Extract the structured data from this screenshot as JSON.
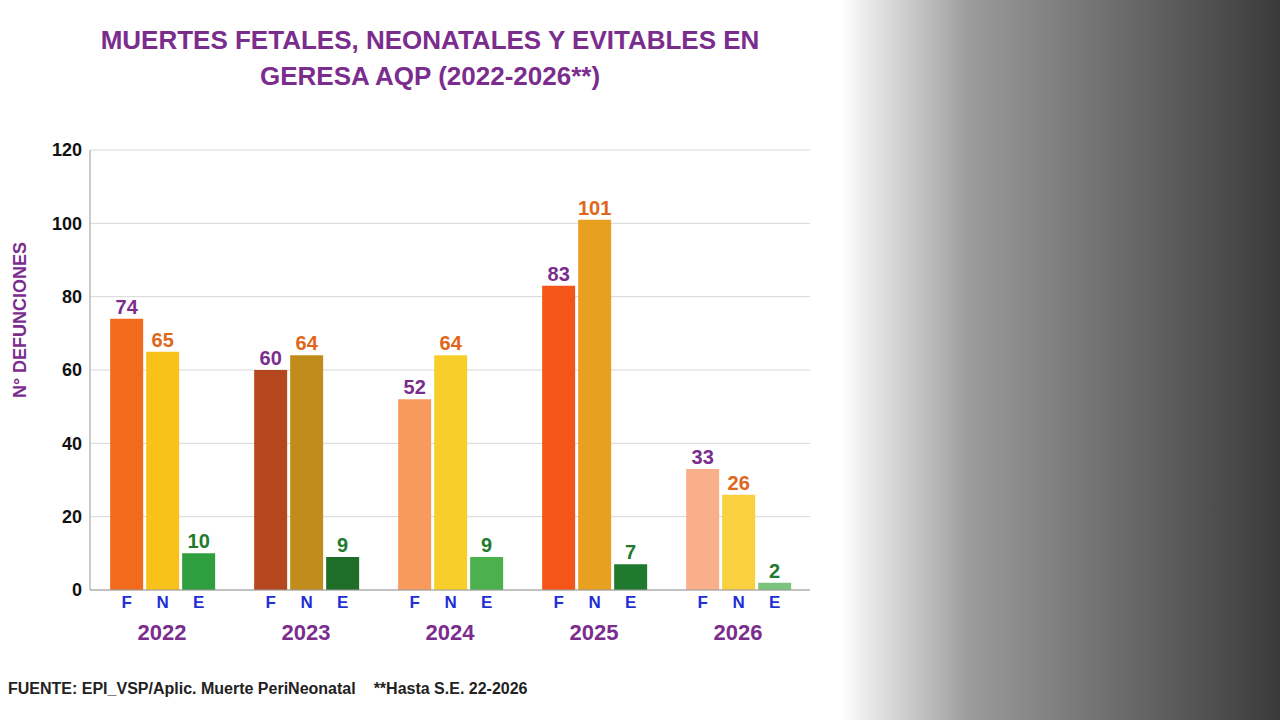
{
  "chart_data": {
    "type": "bar",
    "title": "MUERTES FETALES, NEONATALES Y EVITABLES EN GERESA AQP (2022-2026**)",
    "y_label": "N° DEFUNCIONES",
    "source": "FUENTE: EPI_VSP/Aplic. Muerte PeriNeonatal",
    "note": "**Hasta S.E. 22-2026",
    "categories": [
      "2022",
      "2023",
      "2024",
      "2025",
      "2026"
    ],
    "series": [
      {
        "name": "F",
        "values": [
          74,
          60,
          52,
          83,
          33
        ],
        "colors": [
          "#f26a1b",
          "#b5471f",
          "#f79a5b",
          "#f4561a",
          "#f9b08a"
        ]
      },
      {
        "name": "N",
        "values": [
          65,
          64,
          64,
          101,
          26
        ],
        "colors": [
          "#f8c21a",
          "#c08c1c",
          "#f8cf2a",
          "#e8a020",
          "#f8d040"
        ]
      },
      {
        "name": "E",
        "values": [
          10,
          9,
          9,
          7,
          2
        ],
        "colors": [
          "#2e9e3e",
          "#1e6e2a",
          "#4cb04c",
          "#1f7a30",
          "#7cc47c"
        ]
      }
    ],
    "ylim": [
      0,
      120
    ],
    "yticks": [
      0,
      20,
      40,
      60,
      80,
      100,
      120
    ],
    "grid": true,
    "data_labels": true
  }
}
